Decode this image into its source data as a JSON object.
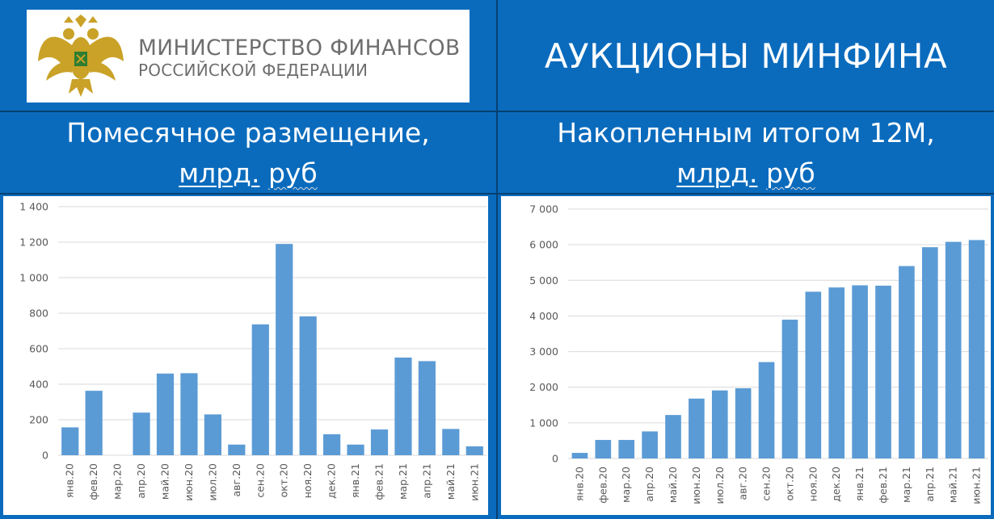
{
  "logo": {
    "ministry_line1": "МИНИСТЕРСТВО ФИНАНСОВ",
    "ministry_line2": "РОССИЙСКОЙ ФЕДЕРАЦИИ",
    "emblem_icon": "double-headed-eagle-emblem-icon"
  },
  "header": {
    "title": "АУКЦИОНЫ МИНФИНА"
  },
  "left_panel": {
    "subtitle_line1": "Помесячное размещение,",
    "unit_a": "млрд.",
    "unit_b": "руб"
  },
  "right_panel": {
    "subtitle_line1": "Накопленным итогом 12М,",
    "unit_a": "млрд.",
    "unit_b": "руб"
  },
  "colors": {
    "background": "#0a6bbd",
    "bar": "#5b9bd5",
    "grid": "#d9d9d9",
    "axis_text": "#595959"
  },
  "chart_data": [
    {
      "type": "bar",
      "categories": [
        "янв.20",
        "фев.20",
        "мар.20",
        "апр.20",
        "май.20",
        "июн.20",
        "июл.20",
        "авг.20",
        "сен.20",
        "окт.20",
        "ноя.20",
        "дек.20",
        "янв.21",
        "фев.21",
        "мар.21",
        "апр.21",
        "май.21",
        "июн.21"
      ],
      "values": [
        157,
        363,
        0,
        240,
        460,
        462,
        230,
        60,
        737,
        1190,
        782,
        118,
        60,
        145,
        550,
        530,
        148,
        50
      ],
      "ylim": [
        0,
        1400
      ],
      "yticks": [
        0,
        200,
        400,
        600,
        800,
        1000,
        1200,
        1400
      ],
      "ytick_labels": [
        "0",
        "200",
        "400",
        "600",
        "800",
        "1 000",
        "1 200",
        "1 400"
      ],
      "grid": true
    },
    {
      "type": "bar",
      "categories": [
        "янв.20",
        "фев.20",
        "мар.20",
        "апр.20",
        "май.20",
        "июн.20",
        "июл.20",
        "авг.20",
        "сен.20",
        "окт.20",
        "ноя.20",
        "дек.20",
        "янв.21",
        "фев.21",
        "мар.21",
        "апр.21",
        "май.21",
        "июн.21"
      ],
      "values": [
        157,
        520,
        520,
        760,
        1220,
        1680,
        1910,
        1970,
        2705,
        3895,
        4680,
        4800,
        4860,
        4850,
        5400,
        5930,
        6080,
        6130
      ],
      "ylim": [
        0,
        7000
      ],
      "yticks": [
        0,
        1000,
        2000,
        3000,
        4000,
        5000,
        6000,
        7000
      ],
      "ytick_labels": [
        "0",
        "1 000",
        "2 000",
        "3 000",
        "4 000",
        "5 000",
        "6 000",
        "7 000"
      ],
      "grid": true
    }
  ]
}
